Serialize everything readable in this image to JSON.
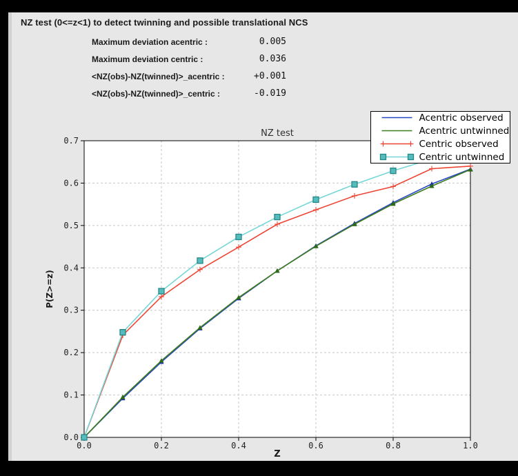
{
  "window": {
    "title": "NZ test (0<=z<1) to detect twinning and possible translational NCS"
  },
  "stats": [
    {
      "label": "Maximum deviation acentric :",
      "value": "0.005"
    },
    {
      "label": "Maximum deviation centric :",
      "value": "0.036"
    },
    {
      "label": "<NZ(obs)-NZ(twinned)>_acentric :",
      "value": "+0.001"
    },
    {
      "label": "<NZ(obs)-NZ(twinned)>_centric :",
      "value": "-0.019"
    }
  ],
  "chart_data": {
    "type": "line",
    "title": "NZ test",
    "xlabel": "Z",
    "ylabel": "P(Z>=z)",
    "xlim": [
      0.0,
      1.0
    ],
    "ylim": [
      0.0,
      0.7
    ],
    "xticks": [
      0.0,
      0.2,
      0.4,
      0.6,
      0.8,
      1.0
    ],
    "yticks": [
      0.0,
      0.1,
      0.2,
      0.3,
      0.4,
      0.5,
      0.6,
      0.7
    ],
    "grid": true,
    "legend_position": "upper right",
    "x": [
      0.0,
      0.1,
      0.2,
      0.3,
      0.4,
      0.5,
      0.6,
      0.7,
      0.8,
      0.9,
      1.0
    ],
    "series": [
      {
        "name": "Acentric observed",
        "color": "#2747c0",
        "marker": "triangle",
        "marker_color": "#1c33a8",
        "legend_marker": "none",
        "values": [
          0.0,
          0.092,
          0.178,
          0.257,
          0.328,
          0.393,
          0.452,
          0.505,
          0.554,
          0.598,
          0.633
        ]
      },
      {
        "name": "Acentric untwinned",
        "color": "#3e7c1f",
        "marker": "triangle",
        "marker_color": "#2f6a16",
        "legend_marker": "none",
        "values": [
          0.0,
          0.095,
          0.181,
          0.259,
          0.33,
          0.393,
          0.451,
          0.503,
          0.551,
          0.593,
          0.632
        ]
      },
      {
        "name": "Centric observed",
        "color": "#ee4433",
        "marker": "plus",
        "marker_color": "#ee4433",
        "legend_marker": "ends",
        "values": [
          0.0,
          0.241,
          0.332,
          0.396,
          0.449,
          0.503,
          0.537,
          0.57,
          0.592,
          0.634,
          0.64
        ]
      },
      {
        "name": "Centric untwinned",
        "color": "#76d6d6",
        "marker": "square",
        "marker_color": "#54bcbc",
        "marker_edge": "#258787",
        "legend_marker": "ends",
        "values": [
          0.0,
          0.248,
          0.345,
          0.417,
          0.473,
          0.52,
          0.561,
          0.597,
          0.629,
          0.657,
          0.683
        ]
      }
    ],
    "style": {
      "grid_color": "#c6c6c6",
      "frame_color": "#000000",
      "plot_bg": "#ffffff",
      "text_color": "#222222"
    }
  }
}
